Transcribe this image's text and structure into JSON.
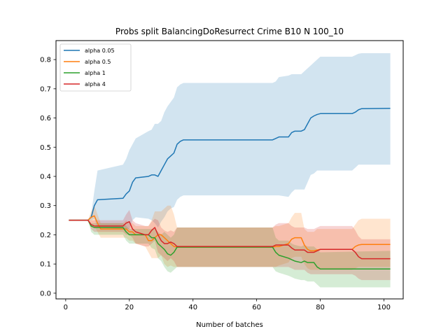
{
  "chart_data": {
    "type": "line",
    "title": "Probs split BalancingDoResurrect Crime B10 N 100_10",
    "xlabel": "Number of batches",
    "ylabel": "",
    "xlim": [
      -3.05,
      106.05
    ],
    "ylim": [
      -0.0195,
      0.865
    ],
    "xticks": [
      0,
      20,
      40,
      60,
      80,
      100
    ],
    "yticks": [
      0.0,
      0.1,
      0.2,
      0.3,
      0.4,
      0.5,
      0.6,
      0.7,
      0.8
    ],
    "ytick_labels": [
      "0.0",
      "0.1",
      "0.2",
      "0.3",
      "0.4",
      "0.5",
      "0.6",
      "0.7",
      "0.8"
    ],
    "grid": false,
    "legend_position": "top-left",
    "series": [
      {
        "name": "alpha 0.05",
        "color": "#1f77b4",
        "band_color": "#1f77b4",
        "x": [
          1,
          7,
          8,
          9,
          10,
          18,
          19,
          20,
          21,
          22,
          26,
          27,
          28,
          29,
          30,
          31,
          32,
          33,
          34,
          35,
          36,
          37,
          65,
          66,
          67,
          70,
          71,
          72,
          74,
          75,
          76,
          77,
          78,
          79,
          80,
          90,
          91,
          92,
          93,
          102
        ],
        "mean": [
          0.25,
          0.25,
          0.26,
          0.3,
          0.32,
          0.325,
          0.34,
          0.35,
          0.38,
          0.395,
          0.4,
          0.405,
          0.405,
          0.4,
          0.42,
          0.44,
          0.46,
          0.47,
          0.48,
          0.51,
          0.52,
          0.525,
          0.525,
          0.53,
          0.535,
          0.535,
          0.55,
          0.555,
          0.555,
          0.56,
          0.58,
          0.6,
          0.607,
          0.612,
          0.615,
          0.615,
          0.62,
          0.628,
          0.632,
          0.633
        ],
        "upper": [
          0.25,
          0.25,
          0.27,
          0.35,
          0.42,
          0.44,
          0.46,
          0.49,
          0.51,
          0.53,
          0.555,
          0.56,
          0.58,
          0.58,
          0.59,
          0.62,
          0.64,
          0.655,
          0.67,
          0.705,
          0.715,
          0.72,
          0.72,
          0.725,
          0.74,
          0.745,
          0.75,
          0.75,
          0.75,
          0.76,
          0.77,
          0.78,
          0.79,
          0.8,
          0.81,
          0.81,
          0.815,
          0.82,
          0.822,
          0.822
        ],
        "lower": [
          0.25,
          0.25,
          0.25,
          0.255,
          0.225,
          0.22,
          0.22,
          0.22,
          0.25,
          0.26,
          0.255,
          0.25,
          0.24,
          0.225,
          0.245,
          0.26,
          0.28,
          0.29,
          0.295,
          0.32,
          0.33,
          0.335,
          0.335,
          0.335,
          0.335,
          0.33,
          0.345,
          0.355,
          0.355,
          0.355,
          0.38,
          0.405,
          0.41,
          0.42,
          0.42,
          0.42,
          0.43,
          0.44,
          0.44,
          0.44
        ]
      },
      {
        "name": "alpha 0.5",
        "color": "#ff7f0e",
        "band_color": "#ff7f0e",
        "x": [
          1,
          7,
          8,
          9,
          10,
          11,
          18,
          19,
          20,
          21,
          22,
          25,
          26,
          27,
          28,
          29,
          30,
          31,
          32,
          33,
          34,
          35,
          36,
          65,
          66,
          67,
          70,
          71,
          72,
          74,
          75,
          76,
          77,
          78,
          79,
          80,
          90,
          91,
          92,
          93,
          102
        ],
        "mean": [
          0.25,
          0.25,
          0.26,
          0.265,
          0.24,
          0.22,
          0.22,
          0.22,
          0.21,
          0.21,
          0.2,
          0.2,
          0.18,
          0.18,
          0.19,
          0.2,
          0.2,
          0.19,
          0.18,
          0.17,
          0.16,
          0.158,
          0.158,
          0.158,
          0.16,
          0.16,
          0.17,
          0.185,
          0.19,
          0.19,
          0.165,
          0.15,
          0.145,
          0.145,
          0.148,
          0.15,
          0.15,
          0.16,
          0.165,
          0.167,
          0.167
        ],
        "upper": [
          0.25,
          0.25,
          0.28,
          0.3,
          0.27,
          0.24,
          0.24,
          0.25,
          0.24,
          0.24,
          0.23,
          0.23,
          0.23,
          0.25,
          0.28,
          0.28,
          0.28,
          0.29,
          0.3,
          0.3,
          0.27,
          0.225,
          0.225,
          0.225,
          0.23,
          0.23,
          0.24,
          0.26,
          0.275,
          0.275,
          0.22,
          0.21,
          0.21,
          0.21,
          0.22,
          0.22,
          0.22,
          0.235,
          0.25,
          0.255,
          0.255
        ],
        "lower": [
          0.25,
          0.25,
          0.24,
          0.23,
          0.21,
          0.19,
          0.19,
          0.19,
          0.18,
          0.18,
          0.17,
          0.16,
          0.14,
          0.12,
          0.12,
          0.12,
          0.13,
          0.1,
          0.09,
          0.095,
          0.09,
          0.09,
          0.09,
          0.09,
          0.09,
          0.095,
          0.105,
          0.12,
          0.125,
          0.125,
          0.1,
          0.085,
          0.08,
          0.08,
          0.08,
          0.08,
          0.08,
          0.085,
          0.09,
          0.09,
          0.09
        ]
      },
      {
        "name": "alpha 1",
        "color": "#2ca02c",
        "band_color": "#2ca02c",
        "x": [
          1,
          7,
          8,
          9,
          18,
          19,
          20,
          21,
          26,
          27,
          28,
          29,
          30,
          31,
          32,
          33,
          34,
          35,
          65,
          66,
          67,
          70,
          71,
          72,
          74,
          75,
          76,
          78,
          79,
          80,
          102
        ],
        "mean": [
          0.25,
          0.25,
          0.23,
          0.225,
          0.225,
          0.21,
          0.2,
          0.2,
          0.2,
          0.19,
          0.19,
          0.17,
          0.16,
          0.15,
          0.135,
          0.13,
          0.14,
          0.158,
          0.158,
          0.14,
          0.13,
          0.12,
          0.115,
          0.11,
          0.105,
          0.11,
          0.105,
          0.105,
          0.09,
          0.083,
          0.083
        ],
        "upper": [
          0.25,
          0.25,
          0.24,
          0.24,
          0.24,
          0.23,
          0.22,
          0.22,
          0.22,
          0.22,
          0.22,
          0.21,
          0.2,
          0.21,
          0.2,
          0.19,
          0.2,
          0.225,
          0.225,
          0.19,
          0.18,
          0.18,
          0.17,
          0.165,
          0.16,
          0.165,
          0.16,
          0.16,
          0.15,
          0.14,
          0.145
        ],
        "lower": [
          0.25,
          0.25,
          0.21,
          0.2,
          0.2,
          0.18,
          0.17,
          0.17,
          0.17,
          0.155,
          0.15,
          0.12,
          0.11,
          0.09,
          0.075,
          0.07,
          0.08,
          0.09,
          0.09,
          0.075,
          0.07,
          0.06,
          0.055,
          0.05,
          0.045,
          0.045,
          0.04,
          0.04,
          0.03,
          0.02,
          0.02
        ]
      },
      {
        "name": "alpha 4",
        "color": "#d62728",
        "band_color": "#d62728",
        "x": [
          1,
          7,
          8,
          9,
          10,
          18,
          19,
          20,
          21,
          22,
          25,
          26,
          27,
          28,
          29,
          30,
          31,
          32,
          33,
          34,
          35,
          65,
          66,
          67,
          70,
          71,
          72,
          75,
          76,
          77,
          78,
          79,
          80,
          90,
          91,
          92,
          93,
          102
        ],
        "mean": [
          0.25,
          0.25,
          0.235,
          0.23,
          0.23,
          0.23,
          0.24,
          0.245,
          0.22,
          0.21,
          0.2,
          0.2,
          0.215,
          0.225,
          0.2,
          0.18,
          0.17,
          0.17,
          0.175,
          0.17,
          0.16,
          0.16,
          0.165,
          0.165,
          0.165,
          0.155,
          0.148,
          0.148,
          0.14,
          0.14,
          0.14,
          0.145,
          0.15,
          0.15,
          0.14,
          0.125,
          0.118,
          0.118
        ],
        "upper": [
          0.25,
          0.25,
          0.25,
          0.25,
          0.25,
          0.25,
          0.27,
          0.285,
          0.25,
          0.24,
          0.23,
          0.23,
          0.245,
          0.255,
          0.25,
          0.225,
          0.215,
          0.21,
          0.215,
          0.21,
          0.225,
          0.225,
          0.235,
          0.24,
          0.24,
          0.23,
          0.225,
          0.225,
          0.22,
          0.22,
          0.22,
          0.225,
          0.23,
          0.23,
          0.215,
          0.195,
          0.185,
          0.185
        ],
        "lower": [
          0.25,
          0.25,
          0.22,
          0.21,
          0.21,
          0.21,
          0.2,
          0.2,
          0.19,
          0.17,
          0.16,
          0.16,
          0.17,
          0.18,
          0.14,
          0.13,
          0.12,
          0.11,
          0.12,
          0.11,
          0.09,
          0.09,
          0.09,
          0.09,
          0.09,
          0.085,
          0.08,
          0.08,
          0.07,
          0.065,
          0.065,
          0.065,
          0.065,
          0.065,
          0.06,
          0.05,
          0.045,
          0.045
        ]
      }
    ]
  }
}
